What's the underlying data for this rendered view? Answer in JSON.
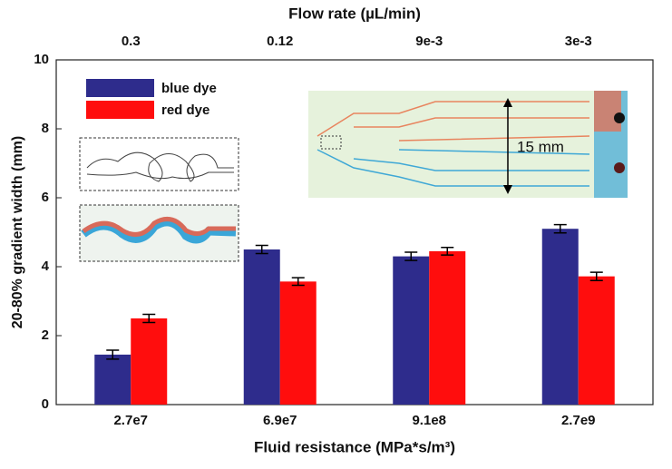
{
  "chart_data": {
    "type": "bar",
    "title": "Flow rate (µL/min)",
    "x2_categories": [
      "0.3",
      "0.12",
      "9e-3",
      "3e-3"
    ],
    "xlabel": "Fluid resistance (MPa*s/m³)",
    "ylabel": "20-80% gradient width (mm)",
    "categories": [
      "2.7e7",
      "6.9e7",
      "9.1e8",
      "2.7e9"
    ],
    "series": [
      {
        "name": "blue dye",
        "color": "#2e2c8c",
        "values": [
          1.45,
          4.5,
          4.3,
          5.1
        ],
        "errors": [
          0.13,
          0.12,
          0.12,
          0.12
        ]
      },
      {
        "name": "red dye",
        "color": "#ff0d0d",
        "values": [
          2.5,
          3.57,
          4.45,
          3.72
        ],
        "errors": [
          0.12,
          0.11,
          0.11,
          0.12
        ]
      }
    ],
    "ylim": [
      0,
      10
    ],
    "yticks": [
      0,
      2,
      4,
      6,
      8,
      10
    ],
    "legend": "upper-left",
    "annotations": [
      "15 mm"
    ]
  }
}
